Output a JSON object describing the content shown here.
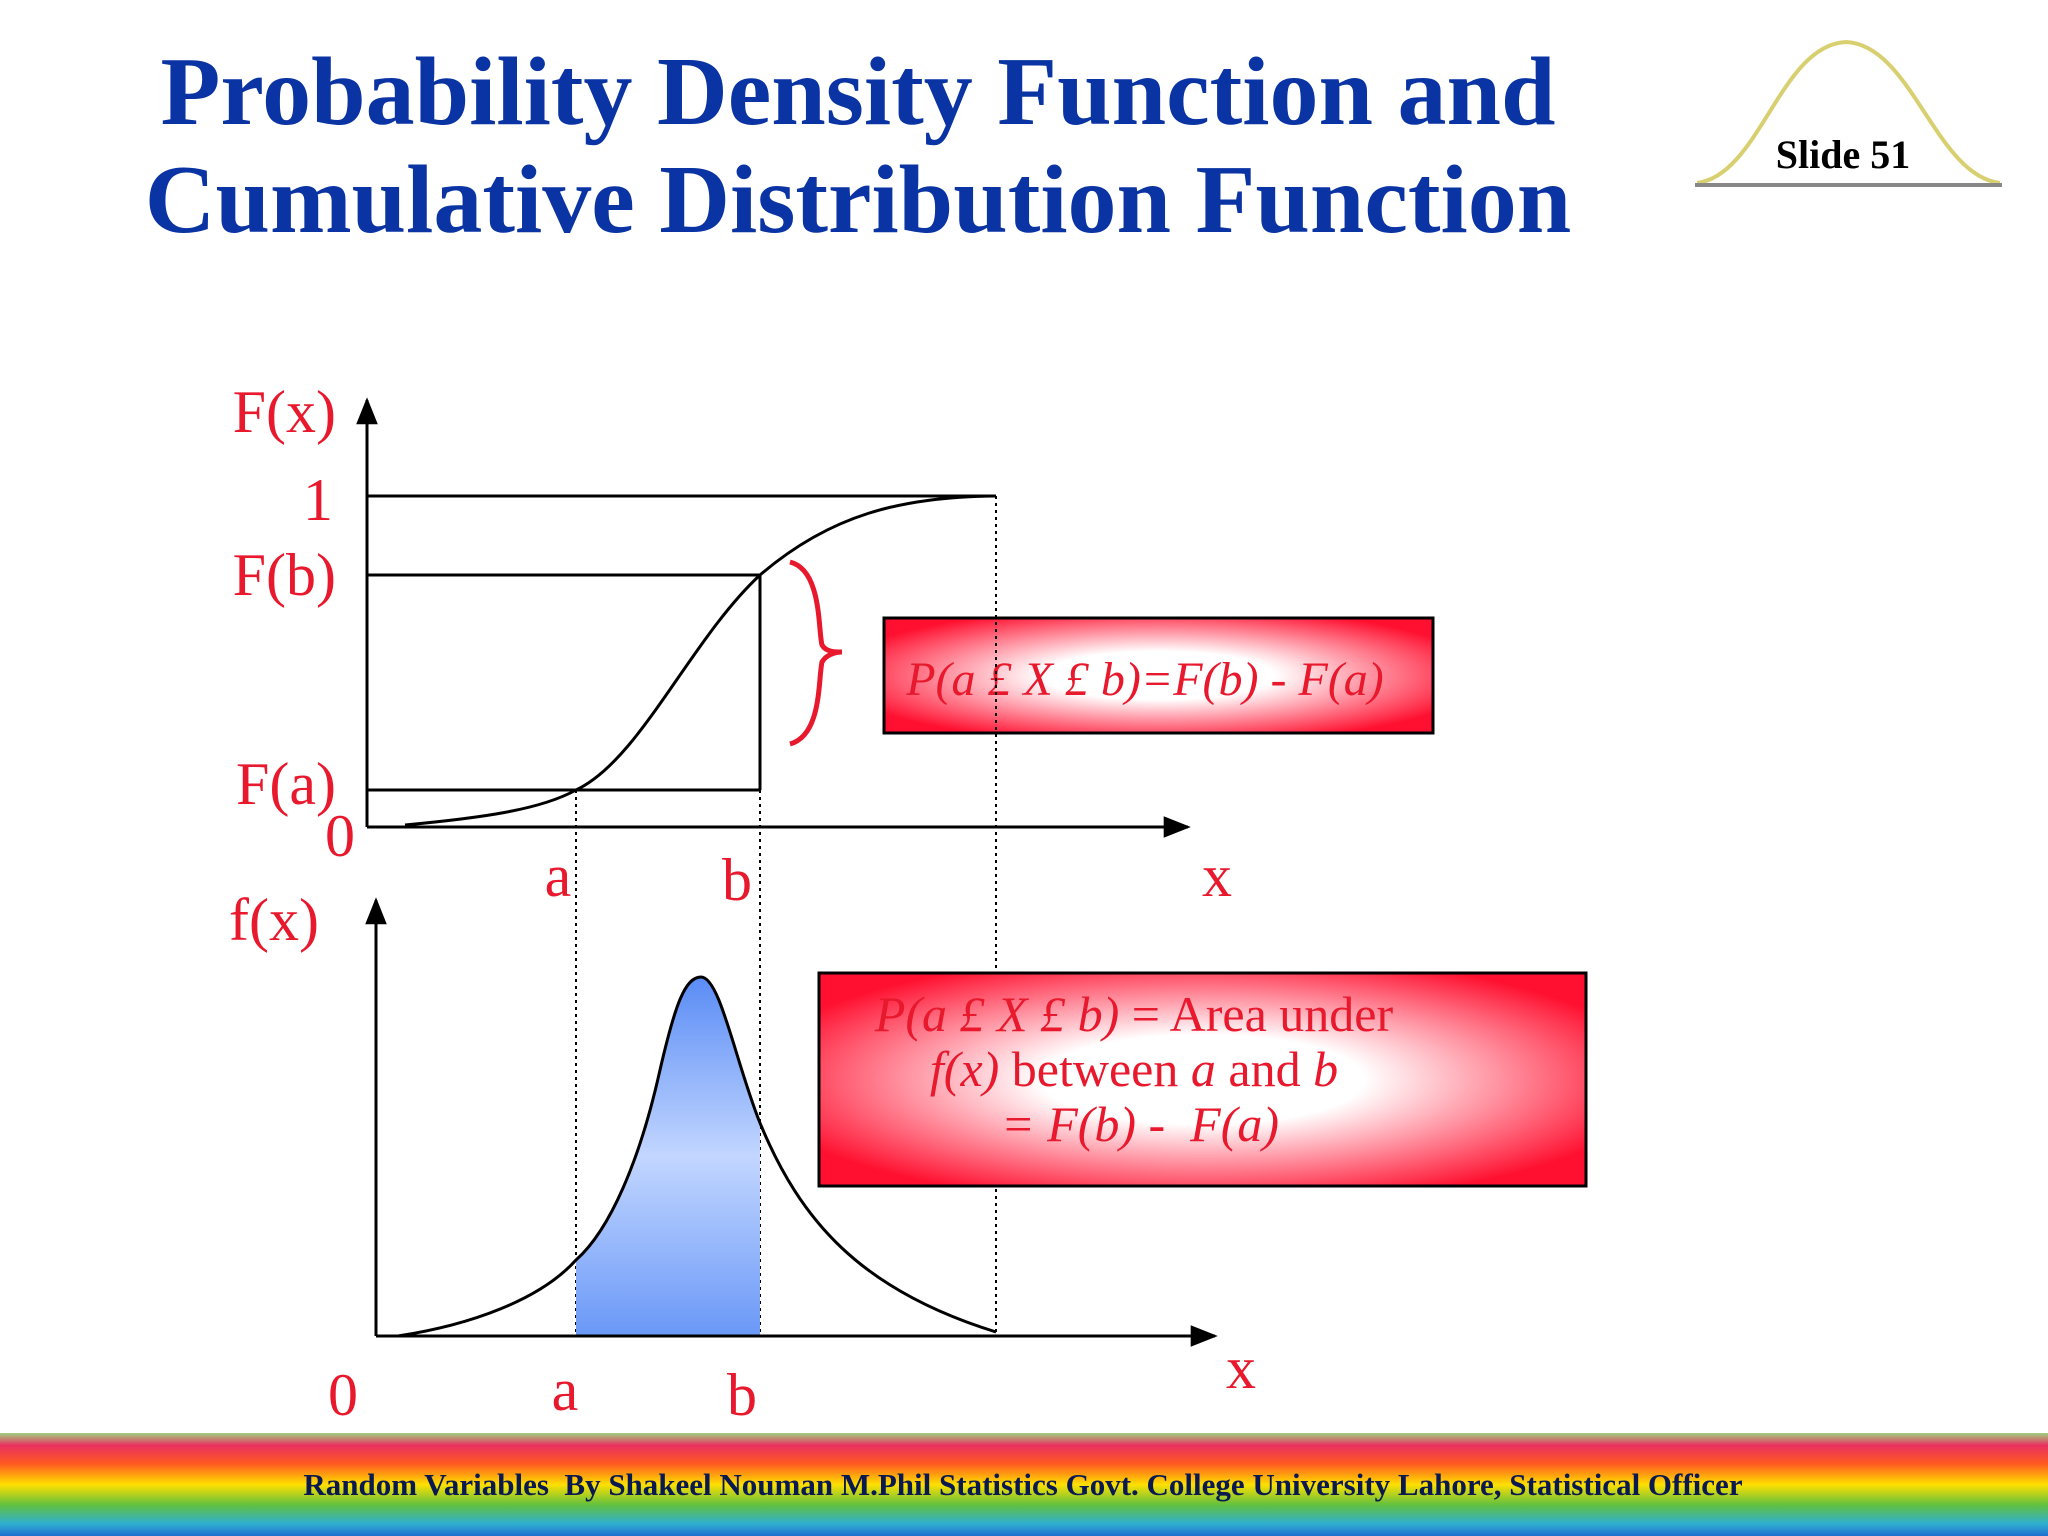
{
  "header": {
    "title_line1": "Probability Density Function and",
    "title_line2": "Cumulative Distribution Function",
    "slide_label": "Slide 51"
  },
  "cdf_panel": {
    "y_axis_label": "F(x)",
    "level_one": "1",
    "level_fb": "F(b)",
    "level_fa": "F(a)",
    "origin": "0",
    "tick_a": "a",
    "tick_b": "b",
    "x_axis_label": "x",
    "formula_box": "P(a £ X £ b)=F(b) - F(a)"
  },
  "pdf_panel": {
    "y_axis_label": "f(x)",
    "origin": "0",
    "tick_a": "a",
    "tick_b": "b",
    "x_axis_label": "x",
    "formula_box": {
      "line1": [
        "P(a £ X £ b)",
        " = Area under"
      ],
      "line2": [
        "f(x)",
        " between ",
        "a",
        " and ",
        "b"
      ],
      "line3": "= F(b) -  F(a)"
    }
  },
  "footer": {
    "text": "Random Variables  By Shakeel Nouman M.Phil Statistics Govt. College University Lahore, Statistical Officer"
  }
}
